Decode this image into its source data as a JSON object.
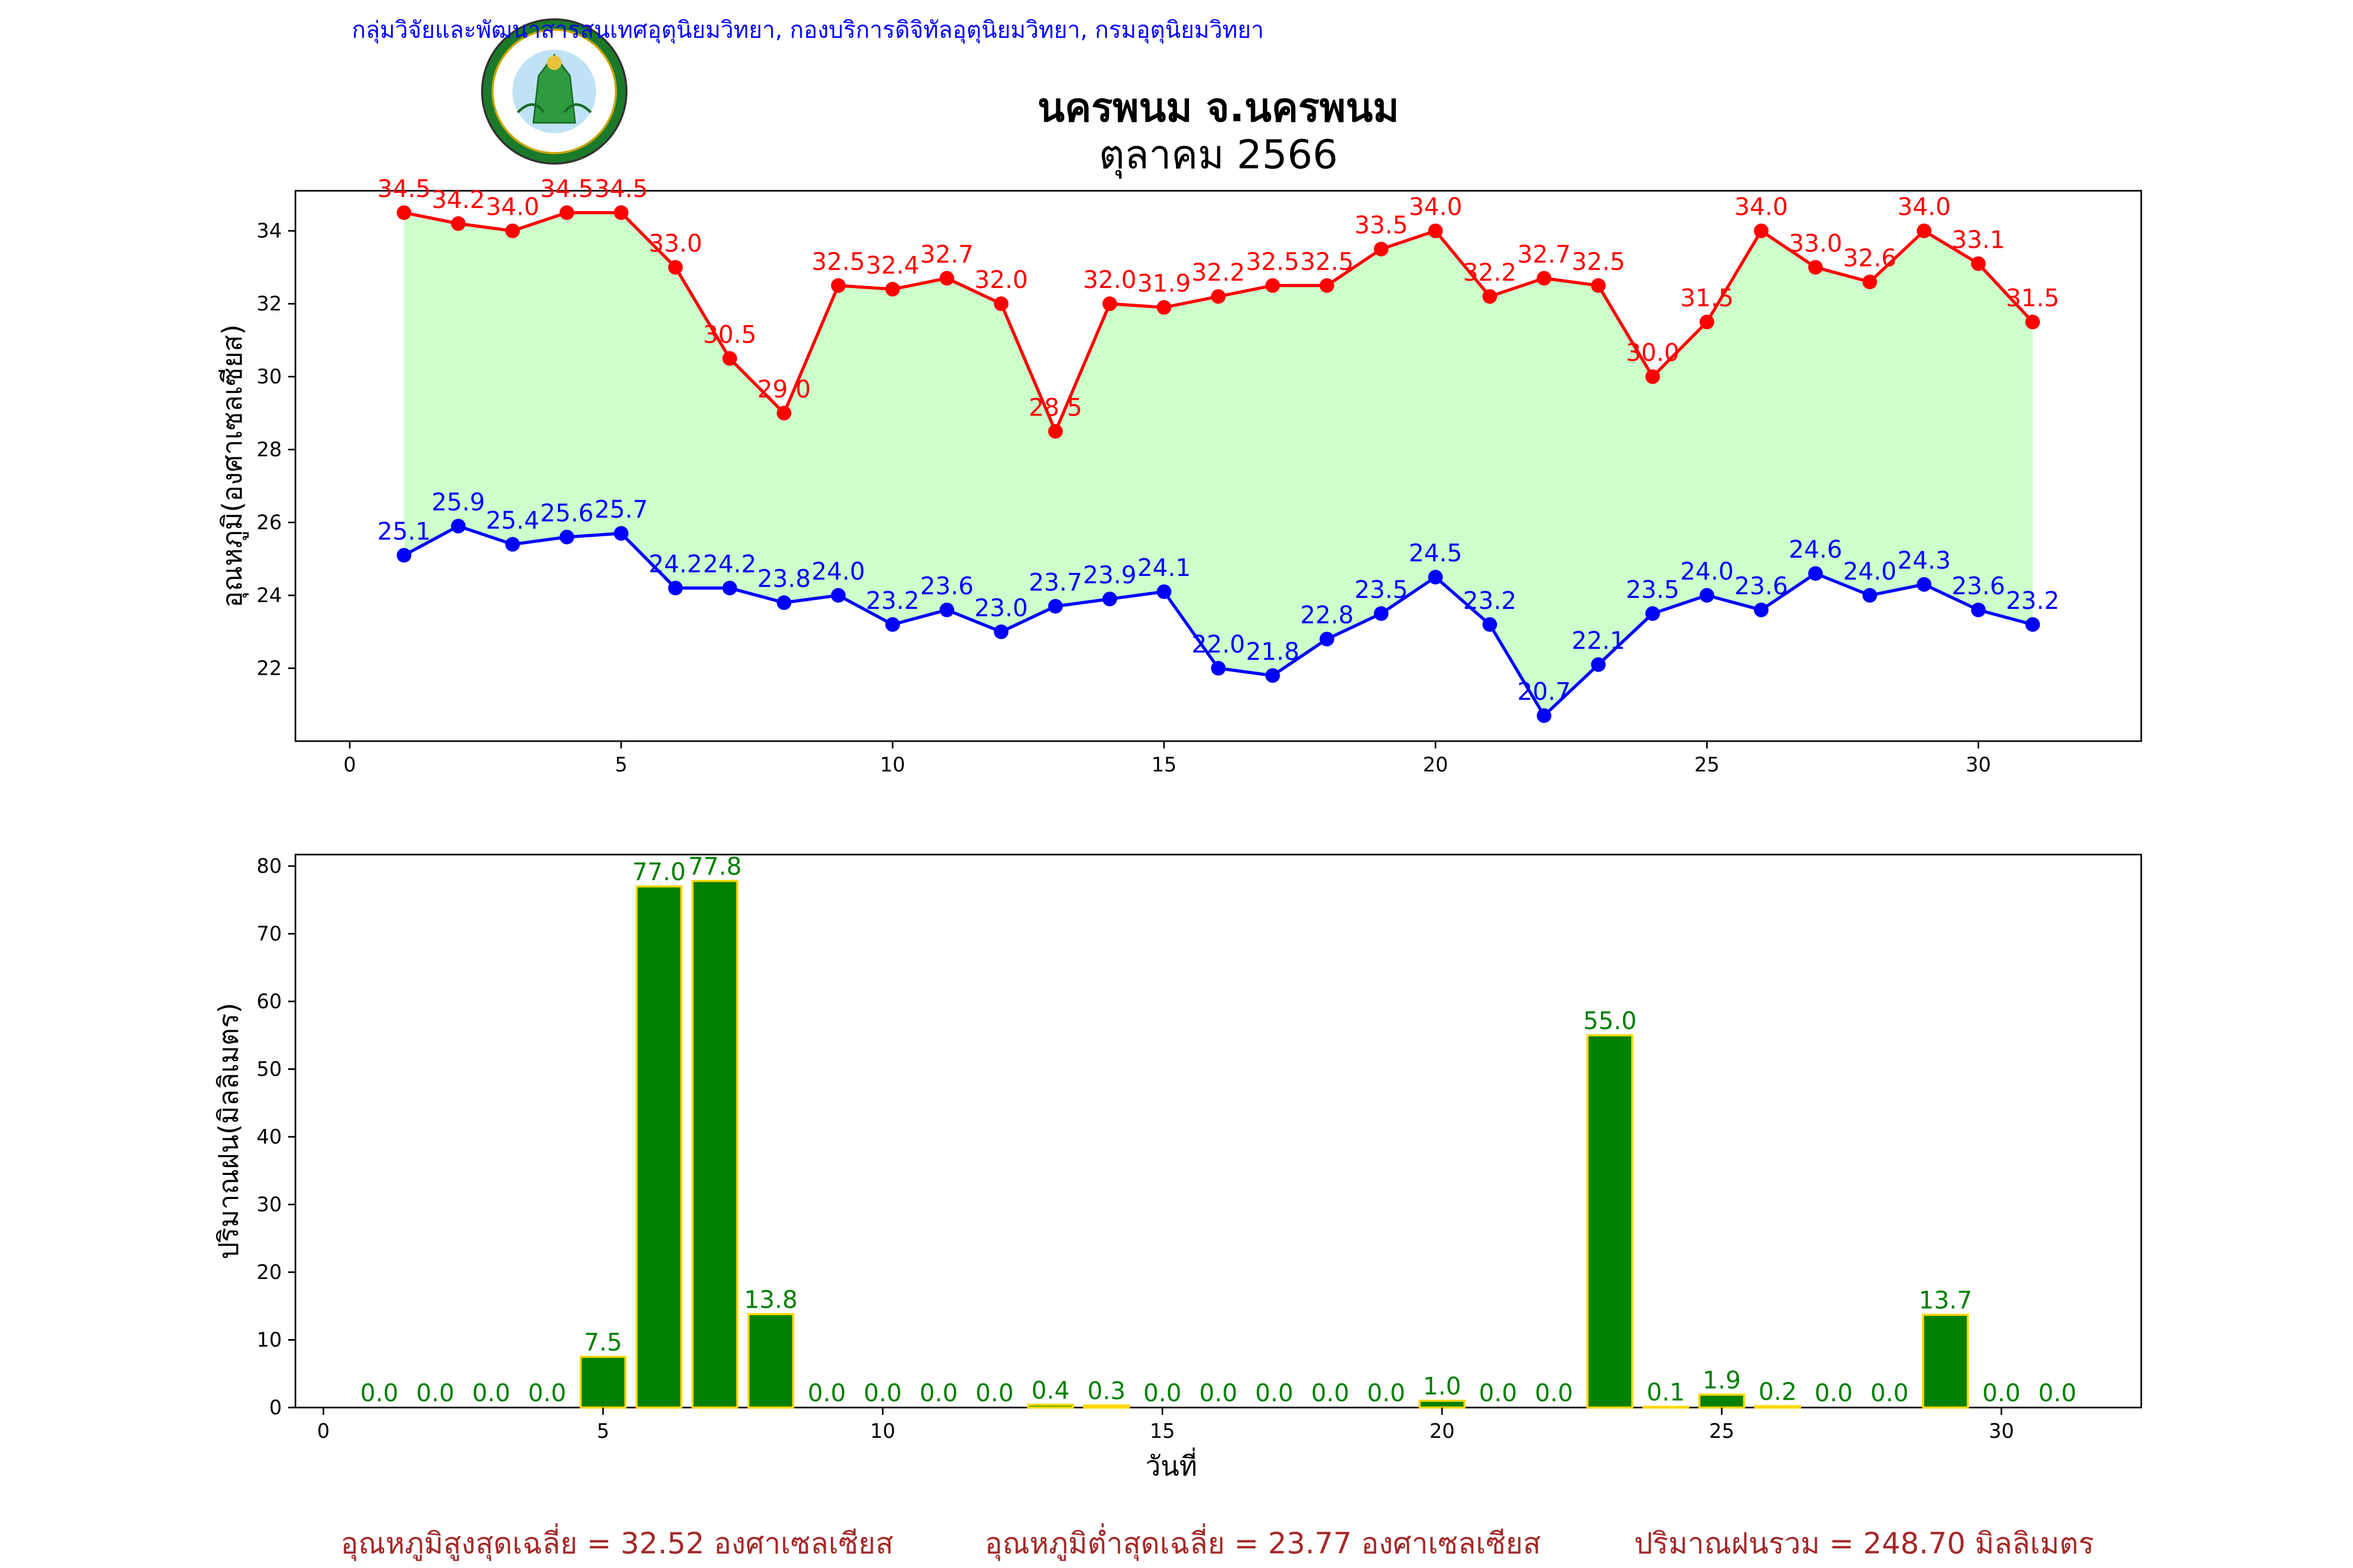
{
  "header": {
    "org_line": "กลุ่มวิจัยและพัฒนาสารสนเทศอุตุนิยมวิทยา, กองบริการดิจิทัลอุตุนิยมวิทยา, กรมอุตุนิยมวิทยา",
    "title_line1": "นครพนม จ.นครพนม",
    "title_line2": "ตุลาคม 2566",
    "logo_text": "กรมอุตุนิยมวิทยา",
    "logo_text_en": "METEOROLOGICAL DEPARTMENT"
  },
  "footer": {
    "avg_max": "อุณหภูมิสูงสุดเฉลี่ย = 32.52 องศาเซลเซียส",
    "avg_min": "อุณหภูมิต่ำสุดเฉลี่ย = 23.77 องศาเซลเซียส",
    "rain_total": "ปริมาณฝนรวม = 248.70 มิลลิเมตร"
  },
  "colors": {
    "max_line": "#ff0000",
    "min_line": "#0000ff",
    "fill": "#ccffcc",
    "bar": "#008000",
    "bar_edge": "#ffd700",
    "header_blue": "#0000ff",
    "footer_red": "#a52a2a"
  },
  "chart_data": [
    {
      "type": "line",
      "ylabel": "อุณหภูมิ(องศาเซลเซียส)",
      "xlim": [
        -1,
        33
      ],
      "ylim": [
        20.0,
        35.1
      ],
      "xticks": [
        0,
        5,
        10,
        15,
        20,
        25,
        30
      ],
      "yticks": [
        22,
        24,
        26,
        28,
        30,
        32,
        34
      ],
      "x": [
        1,
        2,
        3,
        4,
        5,
        6,
        7,
        8,
        9,
        10,
        11,
        12,
        13,
        14,
        15,
        16,
        17,
        18,
        19,
        20,
        21,
        22,
        23,
        24,
        25,
        26,
        27,
        28,
        29,
        30,
        31
      ],
      "series": [
        {
          "key": "max",
          "values": [
            34.5,
            34.2,
            34.0,
            34.5,
            34.5,
            33.0,
            30.5,
            29.0,
            32.5,
            32.4,
            32.7,
            32.0,
            28.5,
            32.0,
            31.9,
            32.2,
            32.5,
            32.5,
            33.5,
            34.0,
            32.2,
            32.7,
            32.5,
            30.0,
            31.5,
            34.0,
            33.0,
            32.6,
            34.0,
            33.1,
            31.5
          ]
        },
        {
          "key": "min",
          "values": [
            25.1,
            25.9,
            25.4,
            25.6,
            25.7,
            24.2,
            24.2,
            23.8,
            24.0,
            23.2,
            23.6,
            23.0,
            23.7,
            23.9,
            24.1,
            22.0,
            21.8,
            22.8,
            23.5,
            24.5,
            23.2,
            20.7,
            22.1,
            23.5,
            24.0,
            23.6,
            24.6,
            24.0,
            24.3,
            23.6,
            23.2
          ]
        }
      ]
    },
    {
      "type": "bar",
      "ylabel": "ปริมาณฝน(มิลลิเมตร)",
      "xlabel": "วันที่",
      "xlim": [
        -0.5,
        32.5
      ],
      "ylim": [
        0,
        81.7
      ],
      "xticks": [
        0,
        5,
        10,
        15,
        20,
        25,
        30
      ],
      "yticks": [
        0,
        10,
        20,
        30,
        40,
        50,
        60,
        70,
        80
      ],
      "categories": [
        1,
        2,
        3,
        4,
        5,
        6,
        7,
        8,
        9,
        10,
        11,
        12,
        13,
        14,
        15,
        16,
        17,
        18,
        19,
        20,
        21,
        22,
        23,
        24,
        25,
        26,
        27,
        28,
        29,
        30,
        31
      ],
      "values": [
        0.0,
        0.0,
        0.0,
        0.0,
        7.5,
        77.0,
        77.8,
        13.8,
        0.0,
        0.0,
        0.0,
        0.0,
        0.4,
        0.3,
        0.0,
        0.0,
        0.0,
        0.0,
        0.0,
        1.0,
        0.0,
        0.0,
        55.0,
        0.1,
        1.9,
        0.2,
        0.0,
        0.0,
        13.7,
        0.0,
        0.0
      ]
    }
  ]
}
